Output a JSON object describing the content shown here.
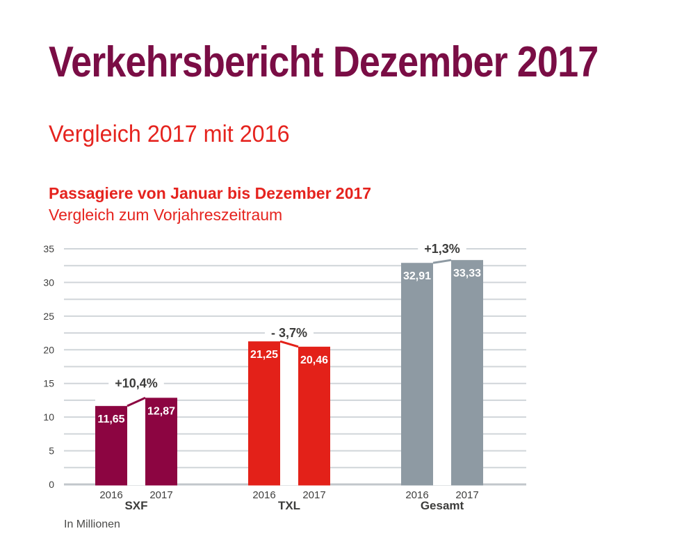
{
  "header": {
    "title": "Verkehrsbericht Dezember 2017",
    "subtitle": "Vergleich 2017 mit 2016",
    "title_color": "#7a0d45",
    "accent_red": "#e5231e"
  },
  "chart": {
    "heading": "Passagiere von Januar bis Dezember 2017",
    "subheading": "Vergleich zum Vorjahreszeitraum",
    "footnote": "In Millionen"
  },
  "chart_data": {
    "type": "bar",
    "title": "Passagiere von Januar bis Dezember 2017",
    "subtitle": "Vergleich zum Vorjahreszeitraum",
    "unit_note": "In Millionen",
    "categories": [
      "2016",
      "2017"
    ],
    "groups": [
      {
        "name": "SXF",
        "color": "#8c0541",
        "values": [
          11.65,
          12.87
        ],
        "value_labels": [
          "11,65",
          "12,87"
        ],
        "change_label": "+10,4%",
        "change_label_y": 15
      },
      {
        "name": "TXL",
        "color": "#e32119",
        "values": [
          21.25,
          20.46
        ],
        "value_labels": [
          "21,25",
          "20,46"
        ],
        "change_label": "- 3,7%",
        "change_label_y": 22.5
      },
      {
        "name": "Gesamt",
        "color": "#8e9aa3",
        "values": [
          32.91,
          33.33
        ],
        "value_labels": [
          "32,91",
          "33,33"
        ],
        "change_label": "+1,3%",
        "change_label_y": 35
      }
    ],
    "y_axis": {
      "min": 0,
      "max": 35,
      "tick_step": 5,
      "minor_step": 2.5,
      "tick_labels": [
        "0",
        "5",
        "10",
        "15",
        "20",
        "25",
        "30",
        "35"
      ]
    },
    "ylim": [
      0,
      35
    ],
    "grid": true,
    "legend": "none",
    "style": {
      "grid_color": "#d0d5d9",
      "baseline_color": "#c2c7cb",
      "axis_text_color": "#3e3e3d",
      "change_text_color": "#3c3c3b",
      "value_text_color": "#ffffff"
    }
  }
}
